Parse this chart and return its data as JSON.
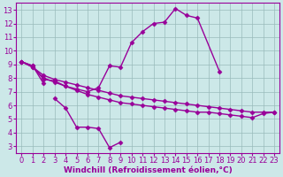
{
  "background_color": "#cce8e8",
  "grid_color": "#99bbbb",
  "line_color": "#990099",
  "marker": "D",
  "markersize": 2.5,
  "linewidth": 1.0,
  "xlabel": "Windchill (Refroidissement éolien,°C)",
  "xlabel_fontsize": 6.5,
  "tick_fontsize": 6,
  "xlim": [
    -0.5,
    23.5
  ],
  "ylim": [
    2.5,
    13.5
  ],
  "xticks": [
    0,
    1,
    2,
    3,
    4,
    5,
    6,
    7,
    8,
    9,
    10,
    11,
    12,
    13,
    14,
    15,
    16,
    17,
    18,
    19,
    20,
    21,
    22,
    23
  ],
  "yticks": [
    3,
    4,
    5,
    6,
    7,
    8,
    9,
    10,
    11,
    12,
    13
  ],
  "curves": [
    {
      "x": [
        0,
        1,
        2,
        3,
        4,
        5,
        6,
        7,
        8,
        9,
        10,
        11,
        12,
        13,
        14,
        15,
        16,
        18
      ],
      "y": [
        9.2,
        8.9,
        7.9,
        7.8,
        7.4,
        7.2,
        7.0,
        7.3,
        8.9,
        8.8,
        10.6,
        11.4,
        12.0,
        12.1,
        13.1,
        12.6,
        12.4,
        8.5
      ]
    },
    {
      "x": [
        0,
        1,
        2
      ],
      "y": [
        9.2,
        8.9,
        7.6
      ]
    },
    {
      "x": [
        3,
        4,
        5,
        6,
        7,
        8,
        9
      ],
      "y": [
        6.5,
        5.8,
        4.4,
        4.4,
        4.3,
        2.9,
        3.3
      ]
    },
    {
      "x": [
        0,
        1,
        2,
        3,
        4,
        5,
        6,
        7,
        8,
        9,
        10,
        11,
        12,
        13,
        14,
        15,
        16,
        17,
        18,
        19,
        20,
        21,
        22,
        23
      ],
      "y": [
        9.2,
        8.8,
        8.2,
        7.9,
        7.7,
        7.5,
        7.3,
        7.1,
        6.9,
        6.7,
        6.6,
        6.5,
        6.4,
        6.3,
        6.2,
        6.1,
        6.0,
        5.9,
        5.8,
        5.7,
        5.6,
        5.5,
        5.5,
        5.5
      ]
    },
    {
      "x": [
        0,
        1,
        2,
        3,
        4,
        5,
        6,
        7,
        8,
        9,
        10,
        11,
        12,
        13,
        14,
        15,
        16,
        17,
        18,
        19,
        20,
        21,
        22,
        23
      ],
      "y": [
        9.2,
        8.8,
        8.0,
        7.7,
        7.4,
        7.1,
        6.8,
        6.6,
        6.4,
        6.2,
        6.1,
        6.0,
        5.9,
        5.8,
        5.7,
        5.6,
        5.5,
        5.5,
        5.4,
        5.3,
        5.2,
        5.1,
        5.4,
        5.5
      ]
    }
  ]
}
